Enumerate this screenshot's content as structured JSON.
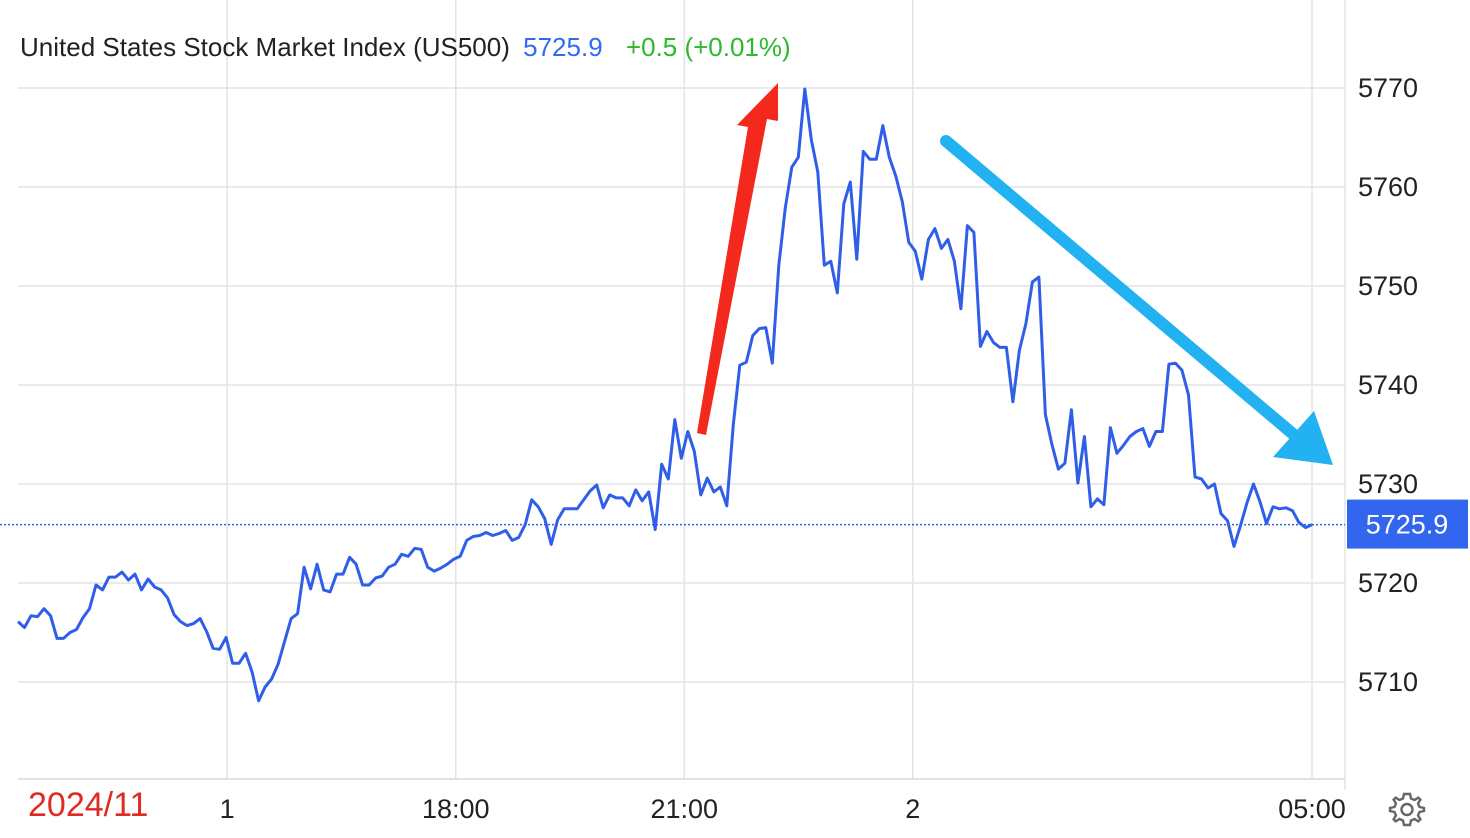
{
  "header": {
    "title": "United States Stock Market Index (US500)",
    "price": "5725.9",
    "change": "+0.5 (+0.01%)"
  },
  "date_label": "2024/11",
  "settings_icon": "gear-icon",
  "colors": {
    "line": "#2f5ee8",
    "price_text": "#2f6bf0",
    "change_text": "#2db82d",
    "badge": "#3366ee",
    "up_arrow": "#f5281e",
    "down_arrow": "#22b2f2",
    "grid": "#e3e3e3",
    "date_label": "#e02a22"
  },
  "chart_data": {
    "type": "line",
    "title": "United States Stock Market Index (US500)",
    "ylim": [
      5700,
      5772
    ],
    "y_ticks": [
      5710,
      5720,
      5730,
      5740,
      5750,
      5760,
      5770
    ],
    "x_tick_labels": [
      "1",
      "18:00",
      "21:00",
      "2",
      "05:00"
    ],
    "x_tick_positions": [
      0.1616,
      0.3383,
      0.5149,
      0.6915,
      1.0
    ],
    "last_value": 5725.9,
    "last_value_label": "5725.9",
    "grid": true,
    "annotations": [
      "up-arrow (red)",
      "down-arrow (blue)"
    ],
    "series": [
      {
        "values": [
          5716.1,
          5715.5,
          5716.7,
          5716.6,
          5717.4,
          5716.7,
          5714.4,
          5714.4,
          5715.0,
          5715.3,
          5716.5,
          5717.4,
          5719.8,
          5719.3,
          5720.6,
          5720.6,
          5721.1,
          5720.3,
          5720.9,
          5719.3,
          5720.4,
          5719.6,
          5719.3,
          5718.5,
          5716.8,
          5716.1,
          5715.7,
          5715.9,
          5716.4,
          5715.1,
          5713.4,
          5713.3,
          5714.5,
          5711.9,
          5711.9,
          5712.9,
          5711.0,
          5708.1,
          5709.5,
          5710.3,
          5711.8,
          5714.1,
          5716.4,
          5716.9,
          5721.6,
          5719.4,
          5721.9,
          5719.3,
          5719.1,
          5720.9,
          5720.9,
          5722.6,
          5721.9,
          5719.8,
          5719.8,
          5720.5,
          5720.7,
          5721.6,
          5721.9,
          5722.9,
          5722.7,
          5723.5,
          5723.4,
          5721.6,
          5721.2,
          5721.5,
          5721.9,
          5722.4,
          5722.7,
          5724.3,
          5724.7,
          5724.8,
          5725.1,
          5724.8,
          5725.0,
          5725.3,
          5724.3,
          5724.6,
          5725.9,
          5728.4,
          5727.7,
          5726.5,
          5723.9,
          5726.4,
          5727.5,
          5727.5,
          5727.5,
          5728.4,
          5729.3,
          5729.9,
          5727.6,
          5728.9,
          5728.6,
          5728.6,
          5727.8,
          5729.4,
          5728.3,
          5729.2,
          5725.4,
          5732.0,
          5730.5,
          5736.5,
          5732.6,
          5735.3,
          5733.3,
          5728.9,
          5730.6,
          5729.2,
          5729.7,
          5727.8,
          5736.0,
          5742.0,
          5742.3,
          5745.0,
          5745.7,
          5745.8,
          5742.2,
          5752.1,
          5757.9,
          5762.0,
          5763.0,
          5769.9,
          5764.8,
          5761.5,
          5752.1,
          5752.5,
          5749.3,
          5758.3,
          5760.5,
          5752.7,
          5763.6,
          5762.8,
          5762.8,
          5766.2,
          5763.0,
          5761.1,
          5758.5,
          5754.4,
          5753.5,
          5750.7,
          5754.7,
          5755.8,
          5753.8,
          5754.7,
          5752.5,
          5747.7,
          5756.1,
          5755.4,
          5743.9,
          5745.4,
          5744.3,
          5743.8,
          5743.8,
          5738.3,
          5743.5,
          5746.2,
          5750.4,
          5750.9,
          5737.0,
          5734.0,
          5731.5,
          5732.1,
          5737.5,
          5730.1,
          5734.8,
          5727.7,
          5728.5,
          5727.9,
          5735.7,
          5733.1,
          5733.9,
          5734.8,
          5735.3,
          5735.6,
          5733.8,
          5735.3,
          5735.3,
          5742.1,
          5742.2,
          5741.5,
          5739.0,
          5730.7,
          5730.5,
          5729.6,
          5730.0,
          5727.0,
          5726.3,
          5723.7,
          5725.8,
          5728.1,
          5730.0,
          5728.2,
          5726.0,
          5727.7,
          5727.5,
          5727.6,
          5727.3,
          5726.1,
          5725.6,
          5725.9
        ]
      }
    ]
  }
}
